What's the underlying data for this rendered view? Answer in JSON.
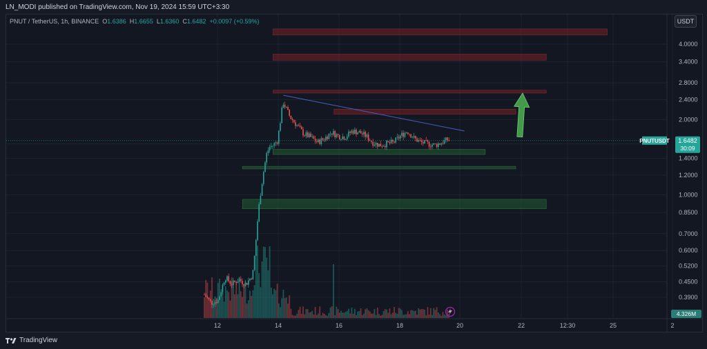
{
  "header": {
    "publisher_text": "LN_MODI published on TradingView.com, Nov 19, 2024 15:59 UTC+3:30"
  },
  "legend": {
    "symbol": "PNUT / TetherUS, 1h, BINANCE",
    "o_label": "O",
    "o_value": "1.6386",
    "h_label": "H",
    "h_value": "1.6655",
    "l_label": "L",
    "l_value": "1.6360",
    "c_label": "C",
    "c_value": "1.6482",
    "change": "+0.0097 (+0.59%)"
  },
  "currency_button": "USDT",
  "price_tag": {
    "symbol": "PNUTUSDT",
    "price": "1.6482",
    "countdown": "30:09"
  },
  "volume_tag": "4.326M",
  "footer": {
    "brand": "TradingView"
  },
  "colors": {
    "background": "#131722",
    "up": "#26a69a",
    "down": "#ef5350",
    "resistance_zone": "#5c1f26",
    "support_zone": "#1f4a2e",
    "trendline": "#4a5fc1",
    "arrow": "#4caf50",
    "price_tag": "#26a69a"
  },
  "chart_data": {
    "type": "candlestick",
    "scale": "log",
    "y_ticks": [
      "4.0000",
      "3.4000",
      "2.8000",
      "2.4000",
      "2.0000",
      "1.6000",
      "1.4000",
      "1.2000",
      "1.0000",
      "0.8500",
      "0.7000",
      "0.6000",
      "0.5200",
      "0.4500",
      "0.3900"
    ],
    "x_ticks": [
      "12",
      "14",
      "16",
      "18",
      "20",
      "22",
      "12:30",
      "25",
      "2"
    ],
    "last_price": 1.6482,
    "volume_last": "4.326M",
    "zones": [
      {
        "kind": "resistance",
        "y_low": 4.35,
        "y_high": 4.6,
        "x_start": "Nov 14",
        "x_end": "Nov 25"
      },
      {
        "kind": "resistance",
        "y_low": 3.45,
        "y_high": 3.65,
        "x_start": "Nov 14",
        "x_end": "Nov 23"
      },
      {
        "kind": "resistance",
        "y_low": 2.55,
        "y_high": 2.62,
        "x_start": "Nov 14",
        "x_end": "Nov 23"
      },
      {
        "kind": "resistance",
        "y_low": 2.1,
        "y_high": 2.2,
        "x_start": "Nov 16",
        "x_end": "Nov 22"
      },
      {
        "kind": "support",
        "y_low": 1.45,
        "y_high": 1.52,
        "x_start": "Nov 14",
        "x_end": "Nov 21"
      },
      {
        "kind": "support",
        "y_low": 1.27,
        "y_high": 1.3,
        "x_start": "Nov 13",
        "x_end": "Nov 22"
      },
      {
        "kind": "support",
        "y_low": 0.88,
        "y_high": 0.96,
        "x_start": "Nov 13",
        "x_end": "Nov 23"
      }
    ],
    "trendline": {
      "from": {
        "x": "Nov 14",
        "y": 2.5
      },
      "to": {
        "x": "Nov 20",
        "y": 1.8
      }
    },
    "projection_arrow": {
      "from": {
        "x": "Nov 21",
        "y": 1.55
      },
      "to": {
        "x": "Nov 22",
        "y": 2.55
      }
    }
  }
}
